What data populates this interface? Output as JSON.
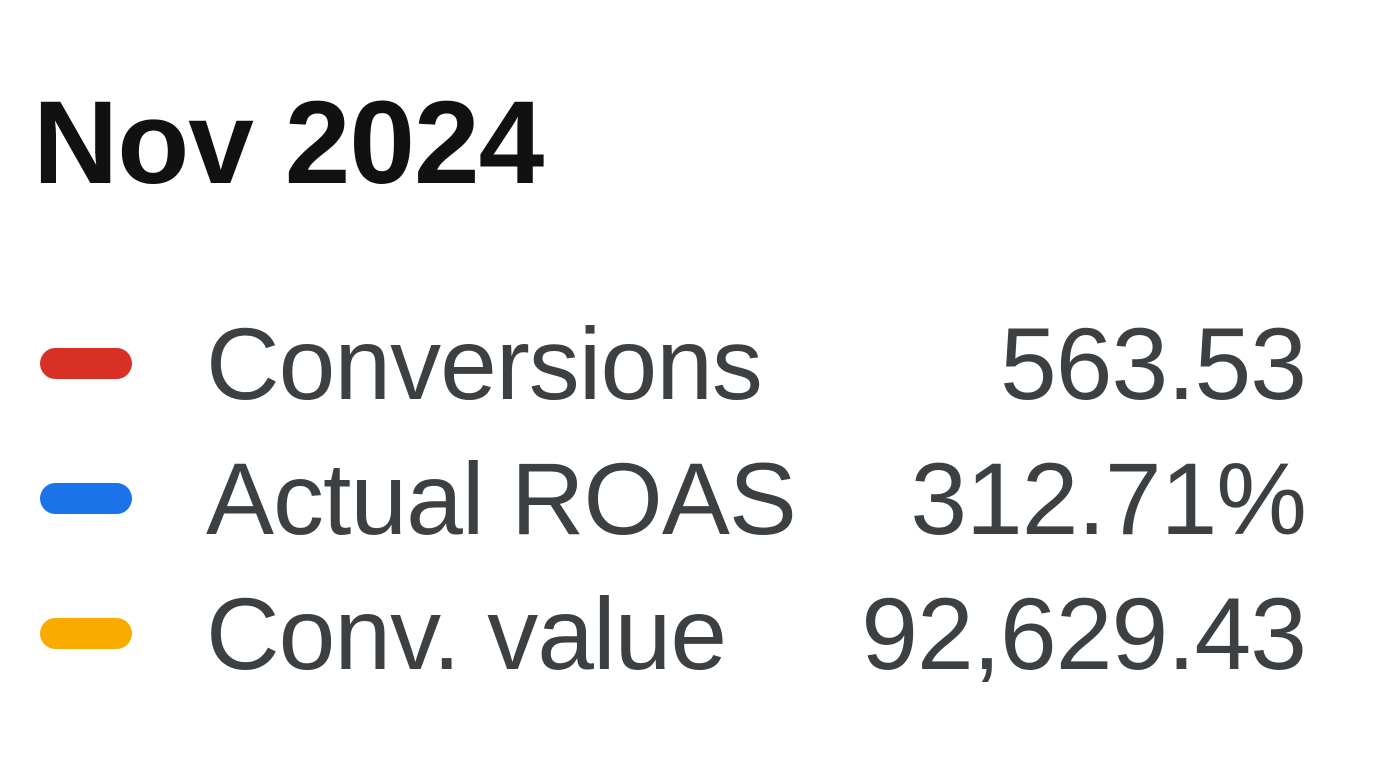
{
  "tooltip": {
    "title": "Nov 2024",
    "rows": [
      {
        "label": "Conversions",
        "value": "563.53",
        "color": "#d93025"
      },
      {
        "label": "Actual ROAS",
        "value": "312.71%",
        "color": "#1a73e8"
      },
      {
        "label": "Conv. value",
        "value": "92,629.43",
        "color": "#f9ab00"
      }
    ]
  },
  "colors": {
    "background": "#ffffff",
    "title_text": "#111111",
    "row_text": "#3c4043",
    "conversions_swatch": "#d93025",
    "actual_roas_swatch": "#1a73e8",
    "conv_value_swatch": "#f9ab00"
  },
  "chart_data": {
    "type": "table",
    "title": "Nov 2024",
    "categories": [
      "Conversions",
      "Actual ROAS",
      "Conv. value"
    ],
    "values": [
      563.53,
      312.71,
      92629.43
    ],
    "series": [
      {
        "name": "Conversions",
        "value": 563.53,
        "display": "563.53",
        "color": "#d93025"
      },
      {
        "name": "Actual ROAS",
        "value": 312.71,
        "display": "312.71%",
        "color": "#1a73e8"
      },
      {
        "name": "Conv. value",
        "value": 92629.43,
        "display": "92,629.43",
        "color": "#f9ab00"
      }
    ],
    "legend_position": "left"
  }
}
